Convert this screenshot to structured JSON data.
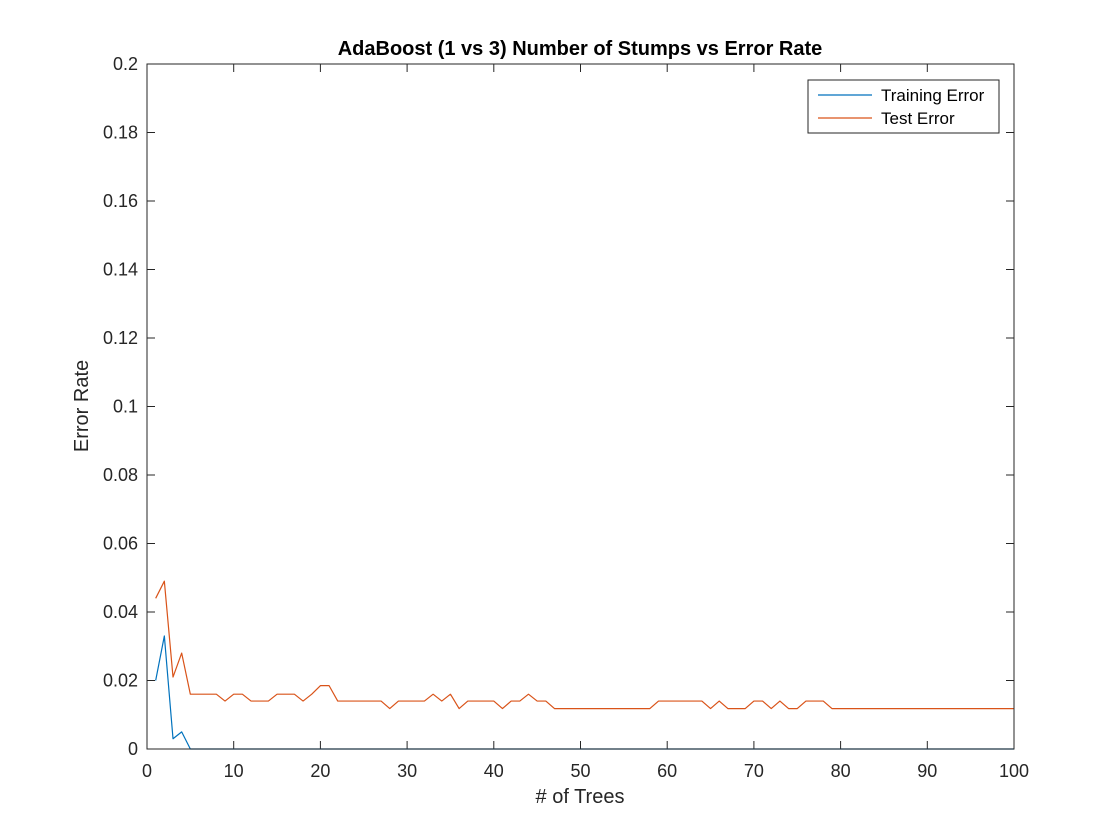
{
  "chart_data": {
    "type": "line",
    "title": "AdaBoost (1 vs 3) Number of Stumps vs Error Rate",
    "xlabel": "# of Trees",
    "ylabel": "Error Rate",
    "xlim": [
      0,
      100
    ],
    "ylim": [
      0,
      0.2
    ],
    "xticks": [
      0,
      10,
      20,
      30,
      40,
      50,
      60,
      70,
      80,
      90,
      100
    ],
    "xtick_labels": [
      "0",
      "10",
      "20",
      "30",
      "40",
      "50",
      "60",
      "70",
      "80",
      "90",
      "100"
    ],
    "yticks": [
      0,
      0.02,
      0.04,
      0.06,
      0.08,
      0.1,
      0.12,
      0.14,
      0.16,
      0.18,
      0.2
    ],
    "ytick_labels": [
      "0",
      "0.02",
      "0.04",
      "0.06",
      "0.08",
      "0.1",
      "0.12",
      "0.14",
      "0.16",
      "0.18",
      "0.2"
    ],
    "grid": false,
    "legend_position": "top-right",
    "series": [
      {
        "name": "Training Error",
        "color": "#0072BD",
        "x": [
          1,
          2,
          3,
          4,
          5,
          100
        ],
        "y": [
          0.02,
          0.033,
          0.003,
          0.005,
          0,
          0
        ]
      },
      {
        "name": "Test Error",
        "color": "#D95319",
        "x": [
          1,
          2,
          3,
          4,
          5,
          6,
          7,
          8,
          9,
          10,
          11,
          12,
          13,
          14,
          15,
          16,
          17,
          18,
          19,
          20,
          21,
          22,
          23,
          24,
          25,
          26,
          27,
          28,
          29,
          30,
          31,
          32,
          33,
          34,
          35,
          36,
          37,
          38,
          39,
          40,
          41,
          42,
          43,
          44,
          45,
          46,
          47,
          48,
          49,
          50,
          51,
          52,
          53,
          54,
          55,
          56,
          57,
          58,
          59,
          60,
          61,
          62,
          63,
          64,
          65,
          66,
          67,
          68,
          69,
          70,
          71,
          72,
          73,
          74,
          75,
          76,
          77,
          78,
          79,
          80,
          81,
          82,
          83,
          84,
          85,
          86,
          87,
          88,
          89,
          90,
          91,
          92,
          93,
          94,
          95,
          96,
          97,
          98,
          99,
          100
        ],
        "y": [
          0.044,
          0.049,
          0.021,
          0.028,
          0.016,
          0.016,
          0.016,
          0.016,
          0.014,
          0.016,
          0.016,
          0.014,
          0.014,
          0.014,
          0.016,
          0.016,
          0.016,
          0.014,
          0.016,
          0.0185,
          0.0185,
          0.014,
          0.014,
          0.014,
          0.014,
          0.014,
          0.014,
          0.0118,
          0.014,
          0.014,
          0.014,
          0.014,
          0.016,
          0.014,
          0.016,
          0.0118,
          0.014,
          0.014,
          0.014,
          0.014,
          0.0118,
          0.014,
          0.014,
          0.016,
          0.014,
          0.014,
          0.0118,
          0.0118,
          0.0118,
          0.0118,
          0.0118,
          0.0118,
          0.0118,
          0.0118,
          0.0118,
          0.0118,
          0.0118,
          0.0118,
          0.014,
          0.014,
          0.014,
          0.014,
          0.014,
          0.014,
          0.0118,
          0.014,
          0.0118,
          0.0118,
          0.0118,
          0.014,
          0.014,
          0.0118,
          0.014,
          0.0118,
          0.0118,
          0.014,
          0.014,
          0.014,
          0.0118,
          0.0118,
          0.0118,
          0.0118,
          0.0118,
          0.0118,
          0.0118,
          0.0118,
          0.0118,
          0.0118,
          0.0118,
          0.0118,
          0.0118,
          0.0118,
          0.0118,
          0.0118,
          0.0118,
          0.0118,
          0.0118,
          0.0118,
          0.0118,
          0.0118
        ]
      }
    ]
  }
}
